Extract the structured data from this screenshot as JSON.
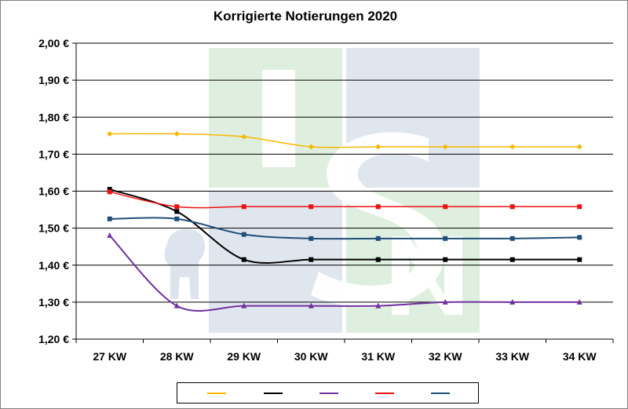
{
  "chart_data": {
    "type": "line",
    "title": "Korrigierte Notierungen 2020",
    "categories": [
      "27 KW",
      "28 KW",
      "29 KW",
      "30 KW",
      "31 KW",
      "32 KW",
      "33 KW",
      "34 KW"
    ],
    "y_ticks": [
      "1,20 €",
      "1,30 €",
      "1,40 €",
      "1,50 €",
      "1,60 €",
      "1,70 €",
      "1,80 €",
      "1,90 €",
      "2,00 €"
    ],
    "ylim": [
      1.2,
      2.0
    ],
    "grid": true,
    "legend_position": "bottom",
    "series": [
      {
        "color": "#f5b800",
        "marker": "diamond",
        "values": [
          1.755,
          1.755,
          1.747,
          1.72,
          1.72,
          1.72,
          1.72,
          1.72
        ]
      },
      {
        "color": "#000000",
        "marker": "square",
        "values": [
          1.605,
          1.545,
          1.415,
          1.415,
          1.415,
          1.415,
          1.415,
          1.415
        ]
      },
      {
        "color": "#7030a0",
        "marker": "triangle",
        "values": [
          1.48,
          1.29,
          1.29,
          1.29,
          1.29,
          1.3,
          1.3,
          1.3
        ]
      },
      {
        "color": "#ee1111",
        "marker": "square",
        "values": [
          1.598,
          1.558,
          1.558,
          1.558,
          1.558,
          1.558,
          1.558,
          1.558
        ]
      },
      {
        "color": "#1f4e79",
        "marker": "square",
        "values": [
          1.525,
          1.525,
          1.483,
          1.472,
          1.472,
          1.472,
          1.472,
          1.475
        ]
      }
    ]
  },
  "watermark": {
    "text": "ISN"
  }
}
